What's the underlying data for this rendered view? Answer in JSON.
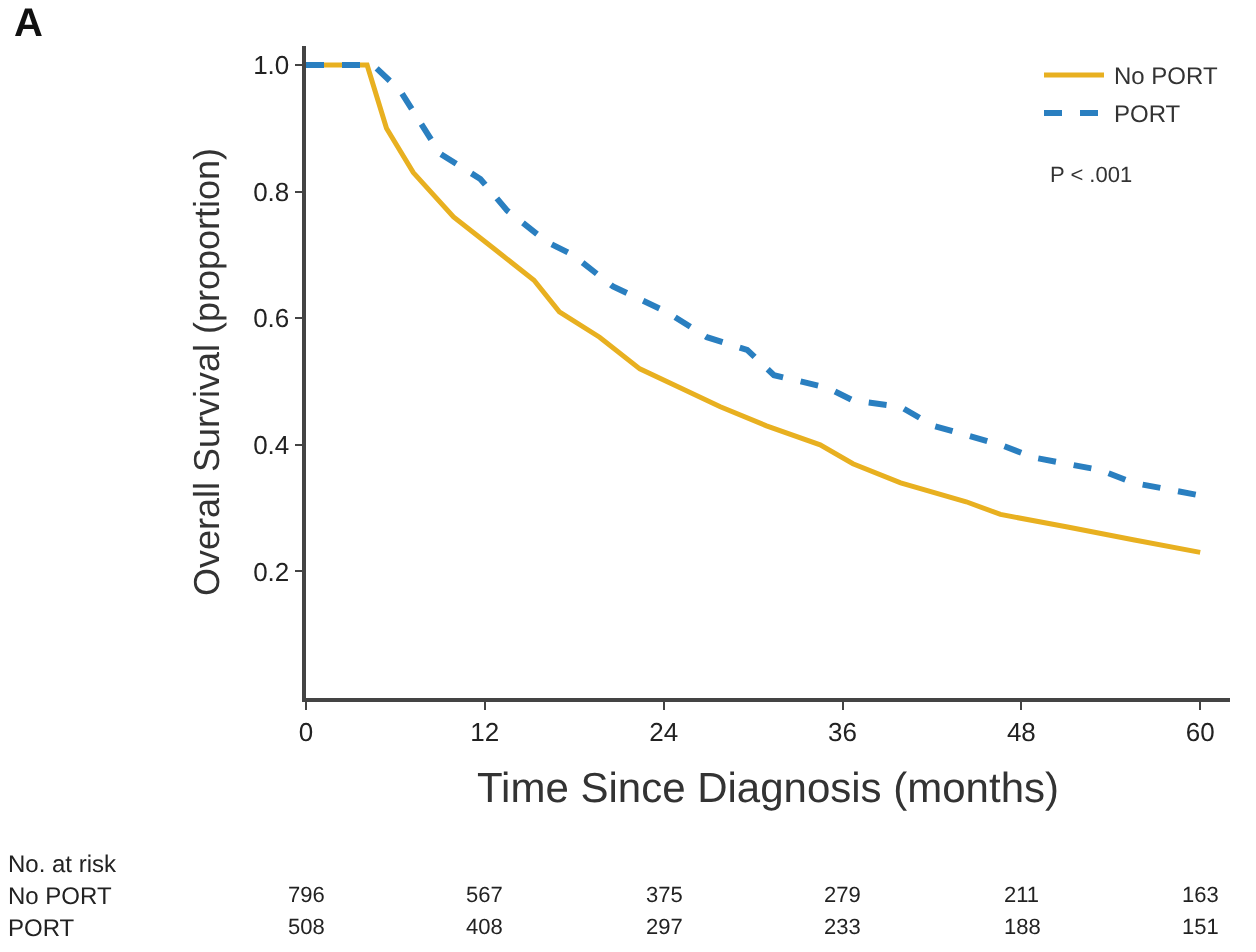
{
  "chart_data": {
    "type": "line",
    "title": "A",
    "xlabel": "Time Since Diagnosis (months)",
    "ylabel": "Overall Survival (proportion)",
    "series": [
      {
        "name": "No PORT",
        "color": "#e8b020",
        "line_style": "solid",
        "x": [
          0,
          4.1,
          5.4,
          7.2,
          9.9,
          12.6,
          15.3,
          17.0,
          19.7,
          22.4,
          25.1,
          27.8,
          30.9,
          34.5,
          36.7,
          39.9,
          44.3,
          46.6,
          51.1,
          55.5,
          60
        ],
        "values": [
          1.0,
          1.0,
          0.9,
          0.83,
          0.76,
          0.71,
          0.66,
          0.61,
          0.57,
          0.52,
          0.49,
          0.46,
          0.43,
          0.4,
          0.37,
          0.34,
          0.31,
          0.29,
          0.27,
          0.25,
          0.23
        ]
      },
      {
        "name": "PORT",
        "color": "#2a7fc0",
        "line_style": "dashed",
        "x": [
          0,
          4.5,
          6.3,
          9.0,
          11.7,
          13.5,
          16.2,
          17.9,
          20.6,
          24.2,
          26.9,
          29.6,
          31.4,
          35.0,
          36.7,
          39.9,
          42.1,
          46.6,
          48.8,
          53.3,
          55.5,
          60
        ],
        "values": [
          1.0,
          1.0,
          0.96,
          0.86,
          0.82,
          0.77,
          0.72,
          0.7,
          0.65,
          0.61,
          0.57,
          0.55,
          0.51,
          0.49,
          0.47,
          0.46,
          0.43,
          0.4,
          0.38,
          0.36,
          0.34,
          0.32
        ]
      }
    ],
    "xlim": [
      0,
      62
    ],
    "xticks": [
      0,
      12,
      24,
      36,
      48,
      60
    ],
    "ylim": [
      0,
      1.03
    ],
    "yticks": [
      {
        "value": 0.2,
        "label": "0.2"
      },
      {
        "value": 0.4,
        "label": "0.4"
      },
      {
        "value": 0.6,
        "label": "0.6"
      },
      {
        "value": 0.8,
        "label": "0.8"
      },
      {
        "value": 1,
        "label": "1.0"
      }
    ],
    "legend": "top right",
    "marker": "none",
    "annotations": [
      "P < .001",
      "No. at risk",
      "No PORT",
      "796",
      "567",
      "375",
      "279",
      "211",
      "163",
      "PORT",
      "508",
      "408",
      "297",
      "233",
      "188",
      "151"
    ]
  }
}
